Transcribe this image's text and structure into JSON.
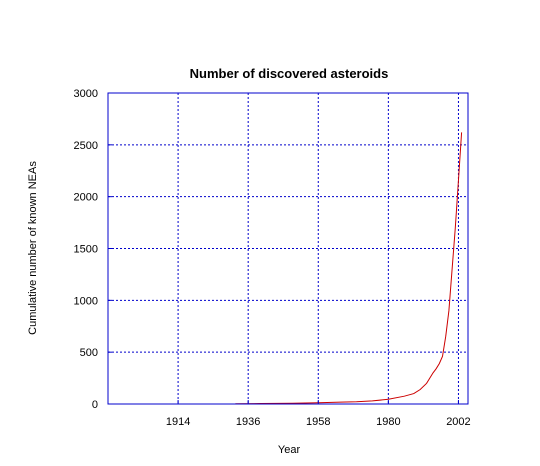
{
  "chart_data": {
    "type": "line",
    "title": "Number of discovered asteroids",
    "xlabel": "Year",
    "ylabel": "Cumulative number of known NEAs",
    "xlim": [
      1892,
      2005
    ],
    "ylim": [
      0,
      3000
    ],
    "x_ticks": [
      1914,
      1936,
      1958,
      1980,
      2002
    ],
    "y_ticks": [
      0,
      500,
      1000,
      1500,
      2000,
      2500,
      3000
    ],
    "grid": true,
    "colors": {
      "frame": "#0000cc",
      "grid": "#0000cc",
      "line": "#cc0000"
    },
    "series": [
      {
        "x": [
          1932,
          1940,
          1950,
          1958,
          1965,
          1970,
          1975,
          1980,
          1985,
          1988,
          1990,
          1992,
          1994,
          1995,
          1996,
          1997,
          1998,
          1999,
          2000,
          2001,
          2002,
          2003
        ],
        "y": [
          2,
          5,
          8,
          12,
          18,
          22,
          30,
          45,
          75,
          100,
          140,
          200,
          300,
          340,
          390,
          460,
          650,
          900,
          1300,
          1700,
          2150,
          2620
        ]
      }
    ]
  }
}
